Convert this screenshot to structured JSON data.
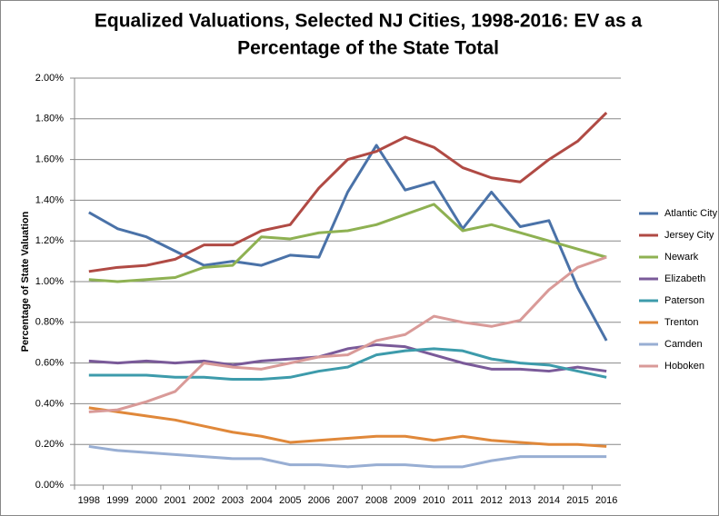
{
  "chart_data": {
    "type": "line",
    "title": [
      "Equalized Valuations, Selected NJ Cities, 1998-2016: EV as a",
      "Percentage of the State Total"
    ],
    "y_label": "Percentage of State Valuation",
    "categories": [
      "1998",
      "1999",
      "2000",
      "2001",
      "2002",
      "2003",
      "2004",
      "2005",
      "2006",
      "2007",
      "2008",
      "2009",
      "2010",
      "2011",
      "2012",
      "2013",
      "2014",
      "2015",
      "2016"
    ],
    "ylim": [
      0,
      2
    ],
    "yticks": [
      {
        "value": 0,
        "label": "0.00%"
      },
      {
        "value": 0.2,
        "label": "0.20%"
      },
      {
        "value": 0.4,
        "label": "0.40%"
      },
      {
        "value": 0.6,
        "label": "0.60%"
      },
      {
        "value": 0.8,
        "label": "0.80%"
      },
      {
        "value": 1,
        "label": "1.00%"
      },
      {
        "value": 1.2,
        "label": "1.20%"
      },
      {
        "value": 1.4,
        "label": "1.40%"
      },
      {
        "value": 1.6,
        "label": "1.60%"
      },
      {
        "value": 1.8,
        "label": "1.80%"
      },
      {
        "value": 2,
        "label": "2.00%"
      }
    ],
    "grid": true,
    "legend": "right",
    "series": [
      {
        "name": "Atlantic City",
        "color": "#4a72a8",
        "values": [
          1.34,
          1.26,
          1.22,
          1.15,
          1.08,
          1.1,
          1.08,
          1.13,
          1.12,
          1.44,
          1.67,
          1.45,
          1.49,
          1.26,
          1.44,
          1.27,
          1.3,
          0.97,
          0.71
        ]
      },
      {
        "name": "Jersey City",
        "color": "#b04a44",
        "values": [
          1.05,
          1.07,
          1.08,
          1.11,
          1.18,
          1.18,
          1.25,
          1.28,
          1.46,
          1.6,
          1.64,
          1.71,
          1.66,
          1.56,
          1.51,
          1.49,
          1.6,
          1.69,
          1.83
        ]
      },
      {
        "name": "Newark",
        "color": "#8eb152",
        "values": [
          1.01,
          1.0,
          1.01,
          1.02,
          1.07,
          1.08,
          1.22,
          1.21,
          1.24,
          1.25,
          1.28,
          1.33,
          1.38,
          1.25,
          1.28,
          1.24,
          1.2,
          1.16,
          1.12
        ]
      },
      {
        "name": "Elizabeth",
        "color": "#7a5a99",
        "values": [
          0.61,
          0.6,
          0.61,
          0.6,
          0.61,
          0.59,
          0.61,
          0.62,
          0.63,
          0.67,
          0.69,
          0.68,
          0.64,
          0.6,
          0.57,
          0.57,
          0.56,
          0.58,
          0.56
        ]
      },
      {
        "name": "Paterson",
        "color": "#3d9bab",
        "values": [
          0.54,
          0.54,
          0.54,
          0.53,
          0.53,
          0.52,
          0.52,
          0.53,
          0.56,
          0.58,
          0.64,
          0.66,
          0.67,
          0.66,
          0.62,
          0.6,
          0.59,
          0.56,
          0.53
        ]
      },
      {
        "name": "Trenton",
        "color": "#e0883a",
        "values": [
          0.38,
          0.36,
          0.34,
          0.32,
          0.29,
          0.26,
          0.24,
          0.21,
          0.22,
          0.23,
          0.24,
          0.24,
          0.22,
          0.24,
          0.22,
          0.21,
          0.2,
          0.2,
          0.19
        ]
      },
      {
        "name": "Camden",
        "color": "#98aed3",
        "values": [
          0.19,
          0.17,
          0.16,
          0.15,
          0.14,
          0.13,
          0.13,
          0.1,
          0.1,
          0.09,
          0.1,
          0.1,
          0.09,
          0.09,
          0.12,
          0.14,
          0.14,
          0.14,
          0.14
        ]
      },
      {
        "name": "Hoboken",
        "color": "#d99a98",
        "values": [
          0.36,
          0.37,
          0.41,
          0.46,
          0.6,
          0.58,
          0.57,
          0.6,
          0.63,
          0.64,
          0.71,
          0.74,
          0.83,
          0.8,
          0.78,
          0.81,
          0.96,
          1.07,
          1.12
        ]
      }
    ]
  }
}
